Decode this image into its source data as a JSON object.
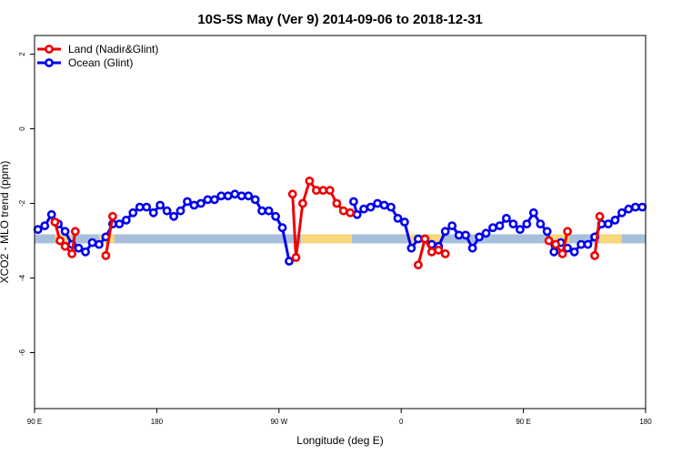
{
  "chart_data": {
    "type": "line",
    "title": "10S-5S May (Ver 9)   2014-09-06 to 2018-12-31",
    "xlabel": "Longitude (deg E)",
    "ylabel": "XCO2 - MLO trend (ppm)",
    "xlim": [
      0,
      360
    ],
    "ylim": [
      -7.5,
      2.5
    ],
    "xticks": [
      {
        "value": 0,
        "label": "90 E"
      },
      {
        "value": 72,
        "label": "180"
      },
      {
        "value": 144,
        "label": "90 W"
      },
      {
        "value": 216,
        "label": "0"
      },
      {
        "value": 288,
        "label": "90 E"
      },
      {
        "value": 360,
        "label": "180"
      }
    ],
    "yticks": [
      {
        "value": 2,
        "label": "2"
      },
      {
        "value": 0,
        "label": "0"
      },
      {
        "value": -2,
        "label": "-2"
      },
      {
        "value": -4,
        "label": "-4"
      },
      {
        "value": -6,
        "label": "-6"
      }
    ],
    "grid": false,
    "legend_position": "top-left",
    "band": {
      "y": -2.95,
      "color": "#a8bfdc",
      "land_color": "#f7d87a",
      "land_segments": [
        [
          12,
          22
        ],
        [
          38,
          47
        ],
        [
          157,
          187
        ],
        [
          220,
          240
        ],
        [
          302,
          315
        ],
        [
          333,
          346
        ]
      ]
    },
    "series": [
      {
        "name": "Land (Nadir&Glint)",
        "color": "#ee0000",
        "segments": [
          [
            [
              12,
              -2.5
            ],
            [
              15,
              -3.0
            ],
            [
              18,
              -3.15
            ],
            [
              22,
              -3.35
            ],
            [
              24,
              -2.75
            ]
          ],
          [
            [
              42,
              -3.4
            ],
            [
              46,
              -2.35
            ]
          ],
          [
            [
              152,
              -1.75
            ],
            [
              154,
              -3.45
            ],
            [
              158,
              -2.0
            ],
            [
              162,
              -1.4
            ],
            [
              166,
              -1.65
            ],
            [
              170,
              -1.65
            ],
            [
              174,
              -1.65
            ],
            [
              178,
              -2.0
            ],
            [
              182,
              -2.2
            ],
            [
              186,
              -2.25
            ]
          ],
          [
            [
              226,
              -3.65
            ],
            [
              230,
              -2.95
            ],
            [
              234,
              -3.3
            ],
            [
              238,
              -3.25
            ],
            [
              242,
              -3.35
            ]
          ],
          [
            [
              303,
              -3.0
            ],
            [
              307,
              -3.1
            ],
            [
              311,
              -3.35
            ],
            [
              314,
              -2.75
            ]
          ],
          [
            [
              330,
              -3.4
            ],
            [
              333,
              -2.35
            ]
          ]
        ]
      },
      {
        "name": "Ocean (Glint)",
        "color": "#0000ee",
        "segments": [
          [
            [
              2,
              -2.7
            ],
            [
              6,
              -2.6
            ],
            [
              10,
              -2.3
            ],
            [
              14,
              -2.55
            ],
            [
              18,
              -2.75
            ],
            [
              22,
              -3.1
            ],
            [
              26,
              -3.2
            ],
            [
              30,
              -3.3
            ],
            [
              34,
              -3.05
            ],
            [
              38,
              -3.1
            ],
            [
              42,
              -2.9
            ],
            [
              46,
              -2.55
            ],
            [
              50,
              -2.55
            ],
            [
              54,
              -2.45
            ],
            [
              58,
              -2.25
            ],
            [
              62,
              -2.1
            ],
            [
              66,
              -2.1
            ],
            [
              70,
              -2.25
            ],
            [
              74,
              -2.05
            ],
            [
              78,
              -2.2
            ],
            [
              82,
              -2.35
            ],
            [
              86,
              -2.2
            ],
            [
              90,
              -1.95
            ],
            [
              94,
              -2.05
            ],
            [
              98,
              -2.0
            ],
            [
              102,
              -1.9
            ],
            [
              106,
              -1.9
            ],
            [
              110,
              -1.8
            ],
            [
              114,
              -1.8
            ],
            [
              118,
              -1.75
            ],
            [
              122,
              -1.8
            ],
            [
              126,
              -1.8
            ],
            [
              130,
              -1.9
            ],
            [
              134,
              -2.2
            ],
            [
              138,
              -2.2
            ],
            [
              142,
              -2.35
            ],
            [
              146,
              -2.65
            ],
            [
              150,
              -3.55
            ]
          ],
          [
            [
              188,
              -1.95
            ],
            [
              190,
              -2.3
            ],
            [
              194,
              -2.15
            ],
            [
              198,
              -2.1
            ],
            [
              202,
              -2.0
            ],
            [
              206,
              -2.05
            ],
            [
              210,
              -2.1
            ],
            [
              214,
              -2.4
            ],
            [
              218,
              -2.5
            ],
            [
              222,
              -3.2
            ],
            [
              226,
              -2.95
            ],
            [
              230,
              -2.95
            ],
            [
              234,
              -3.1
            ],
            [
              238,
              -3.15
            ],
            [
              242,
              -2.75
            ],
            [
              246,
              -2.6
            ],
            [
              250,
              -2.85
            ],
            [
              254,
              -2.85
            ],
            [
              258,
              -3.2
            ],
            [
              262,
              -2.9
            ],
            [
              266,
              -2.8
            ],
            [
              270,
              -2.65
            ],
            [
              274,
              -2.6
            ],
            [
              278,
              -2.4
            ],
            [
              282,
              -2.55
            ],
            [
              286,
              -2.7
            ],
            [
              290,
              -2.55
            ],
            [
              294,
              -2.25
            ],
            [
              298,
              -2.55
            ],
            [
              302,
              -2.75
            ],
            [
              306,
              -3.3
            ],
            [
              310,
              -3.05
            ],
            [
              314,
              -3.2
            ],
            [
              318,
              -3.3
            ],
            [
              322,
              -3.1
            ],
            [
              326,
              -3.1
            ],
            [
              330,
              -2.9
            ],
            [
              334,
              -2.55
            ],
            [
              338,
              -2.55
            ],
            [
              342,
              -2.45
            ],
            [
              346,
              -2.25
            ],
            [
              350,
              -2.15
            ],
            [
              354,
              -2.1
            ],
            [
              358,
              -2.1
            ]
          ]
        ]
      }
    ]
  }
}
